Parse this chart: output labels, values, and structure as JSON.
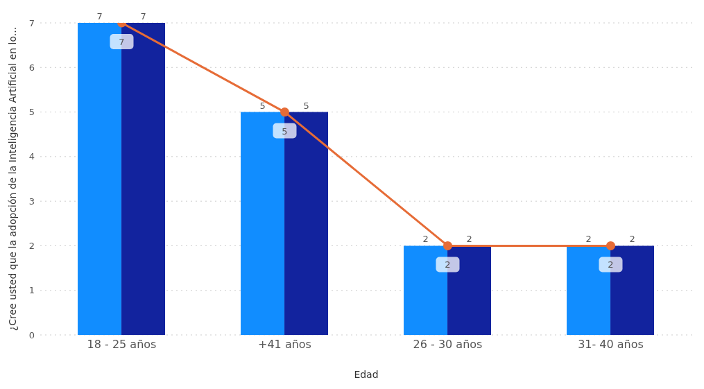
{
  "chart_data": {
    "type": "bar",
    "xlabel": "Edad",
    "ylabel": "¿Cree usted que la adopción de la Inteligencia Artificial en lo...",
    "categories": [
      "18 - 25 años",
      "+41 años",
      "26 - 30 años",
      "31- 40 años"
    ],
    "series": [
      {
        "color": "#118dff",
        "values": [
          7,
          5,
          2,
          2
        ]
      },
      {
        "color": "#12239e",
        "values": [
          7,
          5,
          2,
          2
        ]
      },
      {
        "type": "line",
        "color": "#e66c37",
        "values": [
          7,
          5,
          2,
          2
        ]
      }
    ],
    "ylim": [
      0,
      7
    ],
    "yticks": [
      0,
      1,
      2,
      3,
      4,
      5,
      6,
      7
    ],
    "grid": "y",
    "legend": false,
    "data_labels": true,
    "marker": "circle",
    "line_style": "solid"
  }
}
